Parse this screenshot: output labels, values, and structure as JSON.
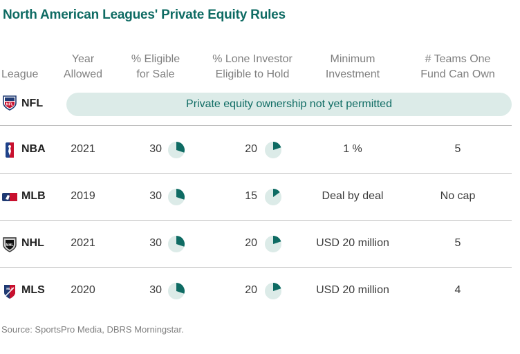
{
  "title": "North American Leagues' Private Equity Rules",
  "headers": {
    "league": "League",
    "year": [
      "Year",
      "Allowed"
    ],
    "eligible": [
      "% Eligible",
      "for Sale"
    ],
    "lone": [
      "% Lone Investor",
      "Eligible to Hold"
    ],
    "minimum": [
      "Minimum",
      "Investment"
    ],
    "teams": [
      "# Teams One",
      "Fund Can Own"
    ]
  },
  "nfl": {
    "league": "NFL",
    "note": "Private equity ownership not yet permitted"
  },
  "colors": {
    "accent": "#0e6b63",
    "pie_fill": "#0e6b63",
    "pie_bg": "#dcebe8",
    "banner_bg": "#dcebe8"
  },
  "chart_data": {
    "type": "table",
    "columns": [
      "League",
      "Year Allowed",
      "% Eligible for Sale",
      "% Lone Investor Eligible to Hold",
      "Minimum Investment",
      "# Teams One Fund Can Own"
    ],
    "rows": [
      {
        "league": "NBA",
        "year": "2021",
        "eligible": 30,
        "lone": 20,
        "minimum": "1 %",
        "teams": "5"
      },
      {
        "league": "MLB",
        "year": "2019",
        "eligible": 30,
        "lone": 15,
        "minimum": "Deal by deal",
        "teams": "No cap"
      },
      {
        "league": "NHL",
        "year": "2021",
        "eligible": 30,
        "lone": 20,
        "minimum": "USD 20 million",
        "teams": "5"
      },
      {
        "league": "MLS",
        "year": "2020",
        "eligible": 30,
        "lone": 20,
        "minimum": "USD 20 million",
        "teams": "4"
      }
    ]
  },
  "source": "Source: SportsPro Media, DBRS Morningstar."
}
